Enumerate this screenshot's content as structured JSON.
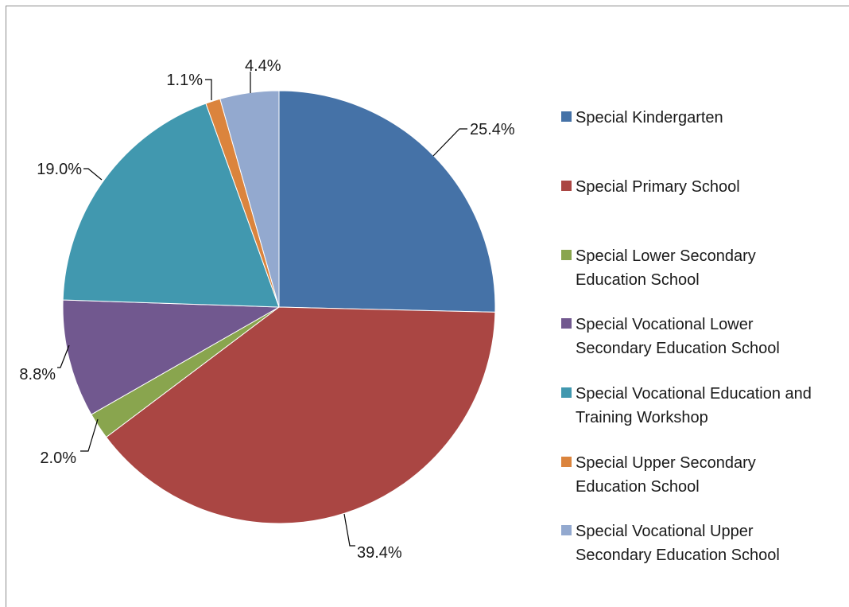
{
  "chart_data": {
    "type": "pie",
    "title": "",
    "slices": [
      {
        "label": "Special Kindergarten",
        "value": 25.4,
        "display": "25.4%",
        "color": "#4572a7"
      },
      {
        "label": "Special Primary School",
        "value": 39.4,
        "display": "39.4%",
        "color": "#aa4643"
      },
      {
        "label": "Special Lower Secondary Education School",
        "value": 2.0,
        "display": "2.0%",
        "color": "#89a54e"
      },
      {
        "label": "Special Vocational Lower Secondary Education School",
        "value": 8.8,
        "display": "8.8%",
        "color": "#71588f"
      },
      {
        "label": "Special Vocational Education and Training Workshop",
        "value": 19.0,
        "display": "19.0%",
        "color": "#4198af"
      },
      {
        "label": "Special Upper Secondary Education School",
        "value": 1.1,
        "display": "1.1%",
        "color": "#db843d"
      },
      {
        "label": "Special Vocational Upper Secondary Education School",
        "value": 4.4,
        "display": "4.4%",
        "color": "#93a9cf"
      }
    ],
    "start_angle": "12 o'clock",
    "direction": "clockwise",
    "legend_position": "right",
    "legend_labels": [
      [
        "Special Kindergarten"
      ],
      [
        "Special Primary School"
      ],
      [
        "Special Lower Secondary",
        "Education School"
      ],
      [
        "Special Vocational Lower",
        "Secondary Education School"
      ],
      [
        "Special Vocational Education and",
        "Training Workshop"
      ],
      [
        "Special Upper Secondary",
        "Education School"
      ],
      [
        "Special Vocational Upper",
        "Secondary Education School"
      ]
    ]
  }
}
